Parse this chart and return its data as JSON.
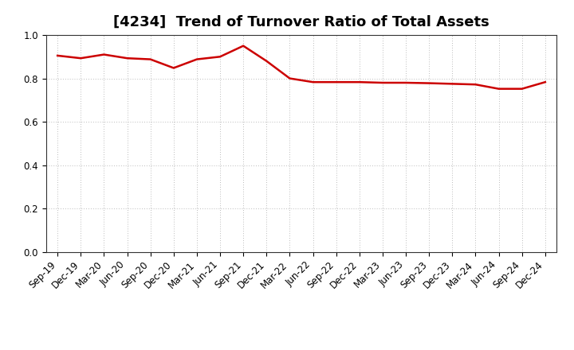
{
  "title": "[4234]  Trend of Turnover Ratio of Total Assets",
  "x_labels": [
    "Sep-19",
    "Dec-19",
    "Mar-20",
    "Jun-20",
    "Sep-20",
    "Dec-20",
    "Mar-21",
    "Jun-21",
    "Sep-21",
    "Dec-21",
    "Mar-22",
    "Jun-22",
    "Sep-22",
    "Dec-22",
    "Mar-23",
    "Jun-23",
    "Sep-23",
    "Dec-23",
    "Mar-24",
    "Jun-24",
    "Sep-24",
    "Dec-24"
  ],
  "y_values": [
    0.905,
    0.893,
    0.91,
    0.893,
    0.888,
    0.848,
    0.888,
    0.9,
    0.95,
    0.88,
    0.8,
    0.783,
    0.783,
    0.783,
    0.78,
    0.78,
    0.778,
    0.775,
    0.772,
    0.752,
    0.752,
    0.783
  ],
  "line_color": "#cc0000",
  "line_width": 1.8,
  "ylim": [
    0.0,
    1.0
  ],
  "yticks": [
    0.0,
    0.2,
    0.4,
    0.6,
    0.8,
    1.0
  ],
  "grid_color": "#bbbbbb",
  "bg_color": "#ffffff",
  "title_fontsize": 13,
  "tick_fontsize": 8.5
}
